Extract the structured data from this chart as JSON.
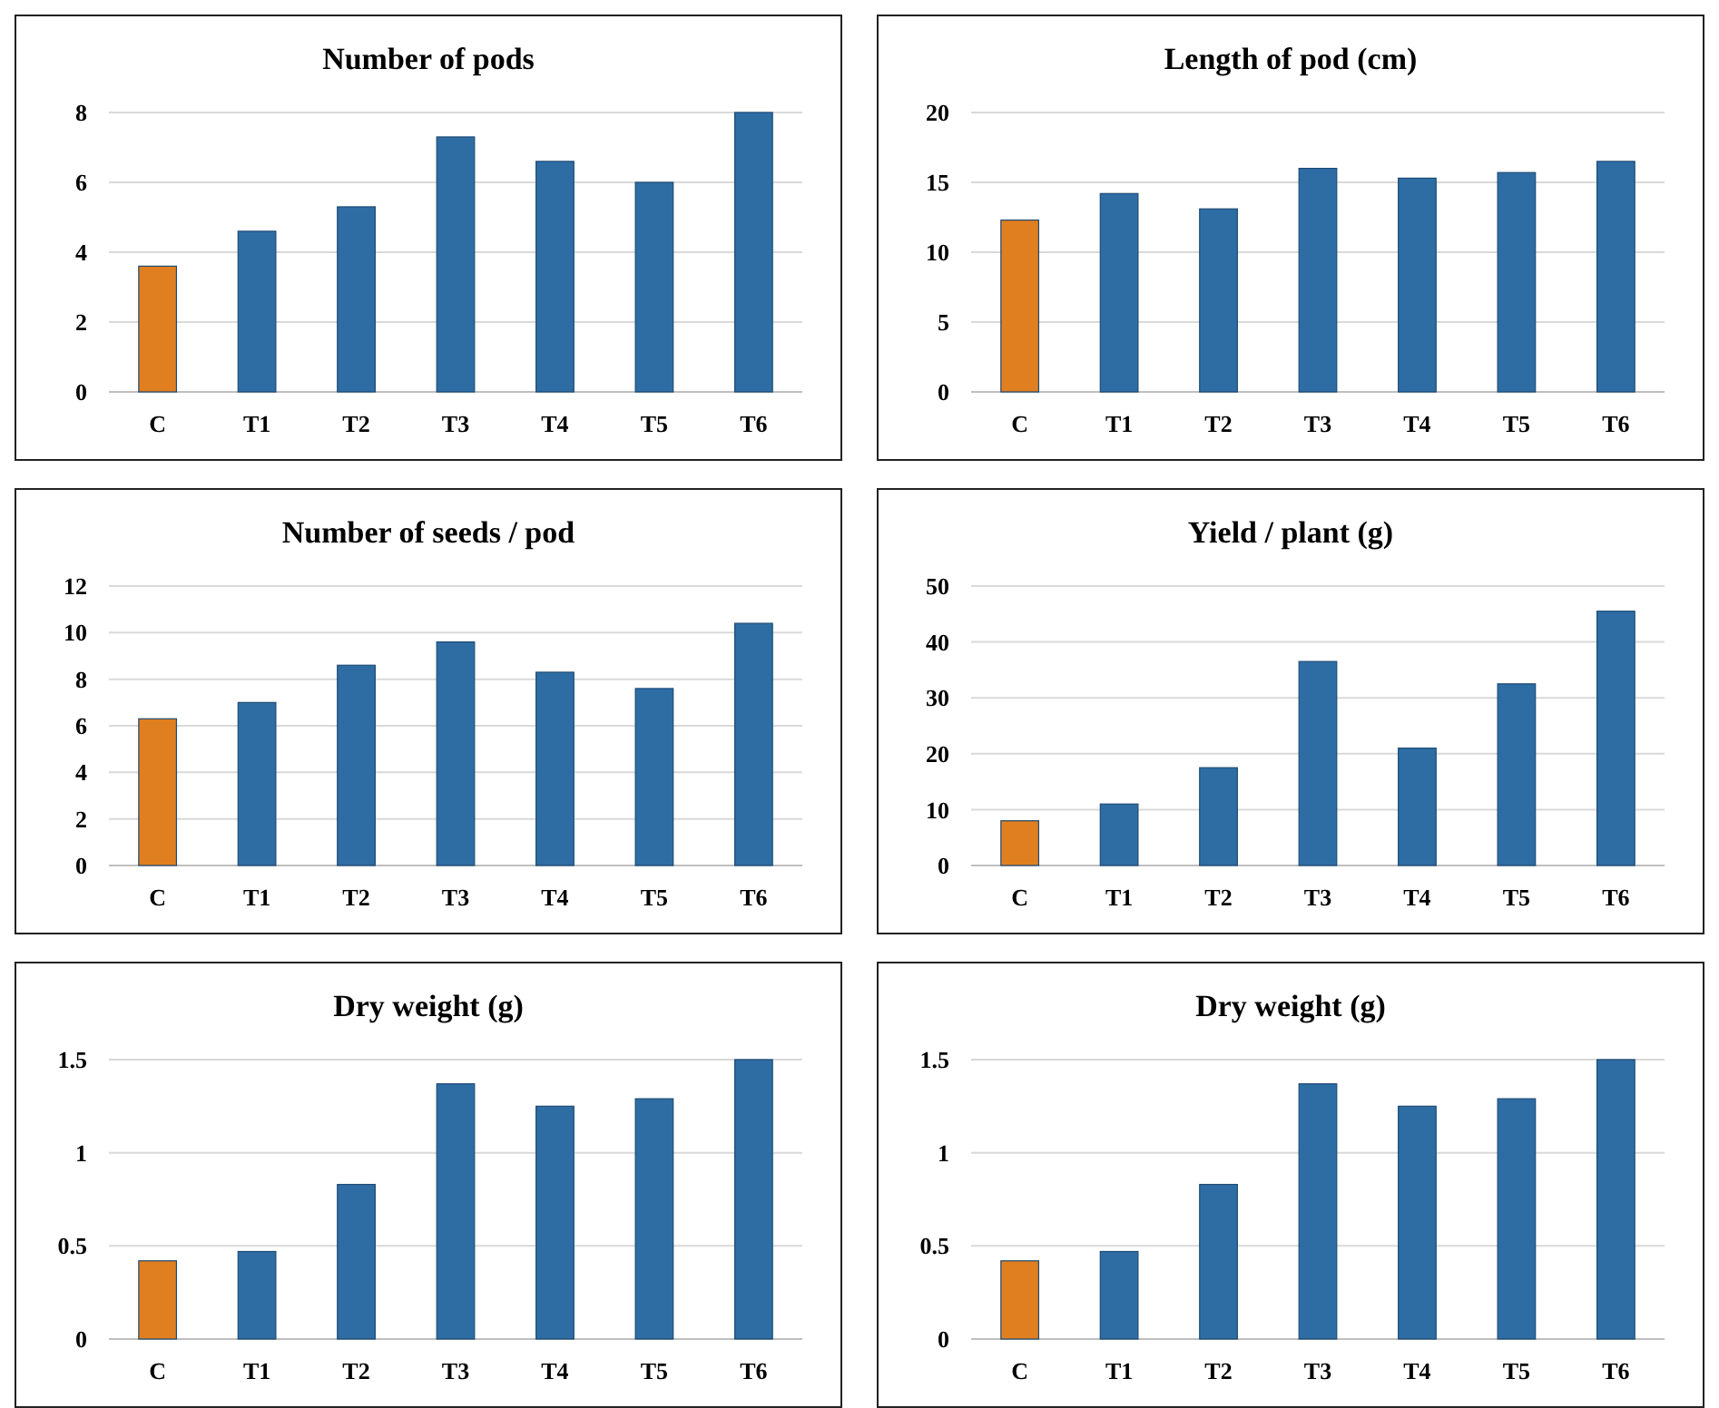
{
  "chart_data": [
    {
      "type": "bar",
      "title": "Number of pods",
      "categories": [
        "C",
        "T1",
        "T2",
        "T3",
        "T4",
        "T5",
        "T6"
      ],
      "values": [
        3.6,
        4.6,
        5.3,
        7.3,
        6.6,
        6.0,
        8.0
      ],
      "colors": [
        "#e07f1f",
        "#2e6da4",
        "#2e6da4",
        "#2e6da4",
        "#2e6da4",
        "#2e6da4",
        "#2e6da4"
      ],
      "ylim": [
        0,
        8
      ],
      "yticks": [
        0,
        2,
        4,
        6,
        8
      ],
      "grid": "y"
    },
    {
      "type": "bar",
      "title": "Length of pod (cm)",
      "categories": [
        "C",
        "T1",
        "T2",
        "T3",
        "T4",
        "T5",
        "T6"
      ],
      "values": [
        12.3,
        14.2,
        13.1,
        16.0,
        15.3,
        15.7,
        16.5
      ],
      "colors": [
        "#e07f1f",
        "#2e6da4",
        "#2e6da4",
        "#2e6da4",
        "#2e6da4",
        "#2e6da4",
        "#2e6da4"
      ],
      "ylim": [
        0,
        20
      ],
      "yticks": [
        0,
        5,
        10,
        15,
        20
      ],
      "grid": "y"
    },
    {
      "type": "bar",
      "title": "Number of seeds / pod",
      "categories": [
        "C",
        "T1",
        "T2",
        "T3",
        "T4",
        "T5",
        "T6"
      ],
      "values": [
        6.3,
        7.0,
        8.6,
        9.6,
        8.3,
        7.6,
        10.4
      ],
      "colors": [
        "#e07f1f",
        "#2e6da4",
        "#2e6da4",
        "#2e6da4",
        "#2e6da4",
        "#2e6da4",
        "#2e6da4"
      ],
      "ylim": [
        0,
        12
      ],
      "yticks": [
        0,
        2,
        4,
        6,
        8,
        10,
        12
      ],
      "grid": "y"
    },
    {
      "type": "bar",
      "title": "Yield / plant (g)",
      "categories": [
        "C",
        "T1",
        "T2",
        "T3",
        "T4",
        "T5",
        "T6"
      ],
      "values": [
        8,
        11,
        17.5,
        36.5,
        21,
        32.5,
        45.5
      ],
      "colors": [
        "#e07f1f",
        "#2e6da4",
        "#2e6da4",
        "#2e6da4",
        "#2e6da4",
        "#2e6da4",
        "#2e6da4"
      ],
      "ylim": [
        0,
        50
      ],
      "yticks": [
        0,
        10,
        20,
        30,
        40,
        50
      ],
      "grid": "y"
    },
    {
      "type": "bar",
      "title": "Dry weight (g)",
      "categories": [
        "C",
        "T1",
        "T2",
        "T3",
        "T4",
        "T5",
        "T6"
      ],
      "values": [
        0.42,
        0.47,
        0.83,
        1.37,
        1.25,
        1.29,
        1.5
      ],
      "colors": [
        "#e07f1f",
        "#2e6da4",
        "#2e6da4",
        "#2e6da4",
        "#2e6da4",
        "#2e6da4",
        "#2e6da4"
      ],
      "ylim": [
        0,
        1.5
      ],
      "yticks": [
        0,
        0.5,
        1,
        1.5
      ],
      "grid": "y"
    },
    {
      "type": "bar",
      "title": "Dry weight (g)",
      "categories": [
        "C",
        "T1",
        "T2",
        "T3",
        "T4",
        "T5",
        "T6"
      ],
      "values": [
        0.42,
        0.47,
        0.83,
        1.37,
        1.25,
        1.29,
        1.5
      ],
      "colors": [
        "#e07f1f",
        "#2e6da4",
        "#2e6da4",
        "#2e6da4",
        "#2e6da4",
        "#2e6da4",
        "#2e6da4"
      ],
      "ylim": [
        0,
        1.5
      ],
      "yticks": [
        0,
        0.5,
        1,
        1.5
      ],
      "grid": "y"
    }
  ]
}
